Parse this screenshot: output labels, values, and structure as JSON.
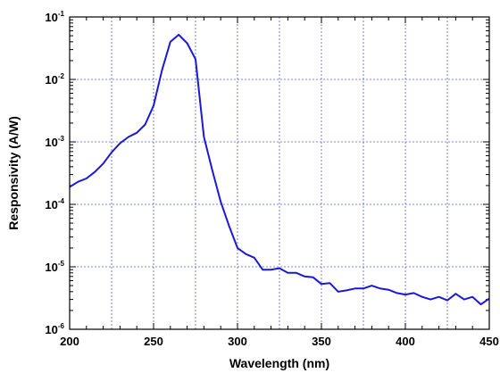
{
  "chart_data": {
    "type": "line",
    "xlabel": "Wavelength (nm)",
    "ylabel": "Responsivity (A/W)",
    "xlim": [
      200,
      450
    ],
    "ylim": [
      1e-06,
      0.1
    ],
    "y_scale": "log",
    "grid": true,
    "x_ticks": [
      200,
      250,
      300,
      350,
      400,
      450
    ],
    "x_tick_labels": [
      "200",
      "250",
      "300",
      "350",
      "400",
      "450"
    ],
    "y_ticks": [
      1e-06,
      1e-05,
      0.0001,
      0.001,
      0.01,
      0.1
    ],
    "y_tick_labels": [
      {
        "base": "10",
        "exp": "-6"
      },
      {
        "base": "10",
        "exp": "-5"
      },
      {
        "base": "10",
        "exp": "-4"
      },
      {
        "base": "10",
        "exp": "-3"
      },
      {
        "base": "10",
        "exp": "-2"
      },
      {
        "base": "10",
        "exp": "-1"
      }
    ],
    "line_color": "#1a1ad6",
    "grid_color": "#5b5bd6",
    "series": [
      {
        "x": [
          200,
          205,
          210,
          215,
          220,
          225,
          230,
          235,
          240,
          245,
          250,
          255,
          260,
          265,
          270,
          275,
          280,
          285,
          290,
          295,
          300,
          305,
          310,
          315,
          320,
          325,
          330,
          335,
          340,
          345,
          350,
          355,
          360,
          365,
          370,
          375,
          380,
          385,
          390,
          395,
          400,
          405,
          410,
          415,
          420,
          425,
          430,
          435,
          440,
          445,
          450
        ],
        "y": [
          0.00019,
          0.00023,
          0.00026,
          0.00033,
          0.00045,
          0.00068,
          0.00095,
          0.0012,
          0.0014,
          0.0019,
          0.0038,
          0.014,
          0.04,
          0.052,
          0.038,
          0.021,
          0.0012,
          0.00035,
          0.00011,
          4.5e-05,
          2e-05,
          1.6e-05,
          1.4e-05,
          9e-06,
          9e-06,
          9.5e-06,
          8e-06,
          8e-06,
          7e-06,
          6.8e-06,
          5.3e-06,
          5.5e-06,
          4e-06,
          4.2e-06,
          4.5e-06,
          4.5e-06,
          5e-06,
          4.5e-06,
          4.3e-06,
          3.8e-06,
          3.6e-06,
          3.8e-06,
          3.3e-06,
          3e-06,
          3.3e-06,
          2.9e-06,
          3.7e-06,
          3e-06,
          3.3e-06,
          2.5e-06,
          3.1e-06
        ]
      }
    ]
  }
}
